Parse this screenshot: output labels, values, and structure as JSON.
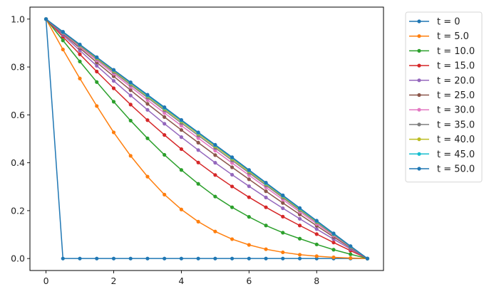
{
  "chart_data": {
    "type": "line",
    "title": "",
    "xlabel": "",
    "ylabel": "",
    "xlim": [
      -0.475,
      9.975
    ],
    "ylim": [
      -0.05,
      1.05
    ],
    "grid": false,
    "legend_position": "outside upper right",
    "x_ticks": [
      0,
      2,
      4,
      6,
      8
    ],
    "x_tick_labels": [
      "0",
      "2",
      "4",
      "6",
      "8"
    ],
    "y_ticks": [
      0.0,
      0.2,
      0.4,
      0.6,
      0.8,
      1.0
    ],
    "y_tick_labels": [
      "0.0",
      "0.2",
      "0.4",
      "0.6",
      "0.8",
      "1.0"
    ],
    "x": [
      0,
      0.5,
      1,
      1.5,
      2,
      2.5,
      3,
      3.5,
      4,
      4.5,
      5,
      5.5,
      6,
      6.5,
      7,
      7.5,
      8,
      8.5,
      9,
      9.5
    ],
    "series": [
      {
        "name": "t = 0",
        "color": "#1f77b4",
        "values": [
          1,
          0,
          0,
          0,
          0,
          0,
          0,
          0,
          0,
          0,
          0,
          0,
          0,
          0,
          0,
          0,
          0,
          0,
          0,
          0
        ]
      },
      {
        "name": "t = 5.0",
        "color": "#ff7f0e",
        "values": [
          1,
          0.873,
          0.752,
          0.637,
          0.527,
          0.429,
          0.342,
          0.267,
          0.205,
          0.154,
          0.113,
          0.081,
          0.057,
          0.039,
          0.026,
          0.016,
          0.01,
          0.005,
          0.002,
          0
        ]
      },
      {
        "name": "t = 10.0",
        "color": "#2ca02c",
        "values": [
          1,
          0.911,
          0.823,
          0.737,
          0.655,
          0.576,
          0.502,
          0.433,
          0.37,
          0.312,
          0.259,
          0.214,
          0.174,
          0.138,
          0.108,
          0.083,
          0.059,
          0.037,
          0.018,
          0
        ]
      },
      {
        "name": "t = 15.0",
        "color": "#d62728",
        "values": [
          1,
          0.926,
          0.853,
          0.781,
          0.711,
          0.643,
          0.578,
          0.516,
          0.457,
          0.401,
          0.349,
          0.301,
          0.256,
          0.214,
          0.175,
          0.138,
          0.102,
          0.067,
          0.033,
          0
        ]
      },
      {
        "name": "t = 20.0",
        "color": "#9467bd",
        "values": [
          1,
          0.934,
          0.869,
          0.805,
          0.742,
          0.681,
          0.621,
          0.563,
          0.507,
          0.453,
          0.4,
          0.35,
          0.302,
          0.255,
          0.21,
          0.166,
          0.123,
          0.081,
          0.04,
          0
        ]
      },
      {
        "name": "t = 25.0",
        "color": "#8c564b",
        "values": [
          1,
          0.939,
          0.879,
          0.819,
          0.761,
          0.703,
          0.646,
          0.591,
          0.537,
          0.484,
          0.432,
          0.381,
          0.331,
          0.281,
          0.232,
          0.184,
          0.137,
          0.09,
          0.045,
          0
        ]
      },
      {
        "name": "t = 30.0",
        "color": "#e377c2",
        "values": [
          1,
          0.942,
          0.885,
          0.828,
          0.772,
          0.717,
          0.662,
          0.608,
          0.555,
          0.503,
          0.451,
          0.399,
          0.348,
          0.297,
          0.246,
          0.195,
          0.145,
          0.096,
          0.048,
          0
        ]
      },
      {
        "name": "t = 35.0",
        "color": "#7f7f7f",
        "values": [
          1,
          0.944,
          0.889,
          0.834,
          0.779,
          0.725,
          0.672,
          0.619,
          0.566,
          0.514,
          0.462,
          0.41,
          0.358,
          0.306,
          0.254,
          0.202,
          0.151,
          0.1,
          0.049,
          0
        ]
      },
      {
        "name": "t = 40.0",
        "color": "#bcbd22",
        "values": [
          1,
          0.946,
          0.891,
          0.837,
          0.784,
          0.731,
          0.678,
          0.625,
          0.573,
          0.521,
          0.469,
          0.417,
          0.364,
          0.312,
          0.259,
          0.206,
          0.154,
          0.102,
          0.05,
          0
        ]
      },
      {
        "name": "t = 45.0",
        "color": "#17becf",
        "values": [
          1,
          0.946,
          0.893,
          0.84,
          0.787,
          0.734,
          0.681,
          0.629,
          0.577,
          0.525,
          0.473,
          0.421,
          0.368,
          0.315,
          0.262,
          0.209,
          0.156,
          0.103,
          0.051,
          0
        ]
      },
      {
        "name": "t = 50.0",
        "color": "#1f77b4",
        "values": [
          1,
          0.947,
          0.894,
          0.841,
          0.788,
          0.736,
          0.684,
          0.632,
          0.579,
          0.527,
          0.475,
          0.423,
          0.37,
          0.317,
          0.264,
          0.211,
          0.158,
          0.105,
          0.052,
          0
        ]
      }
    ]
  }
}
